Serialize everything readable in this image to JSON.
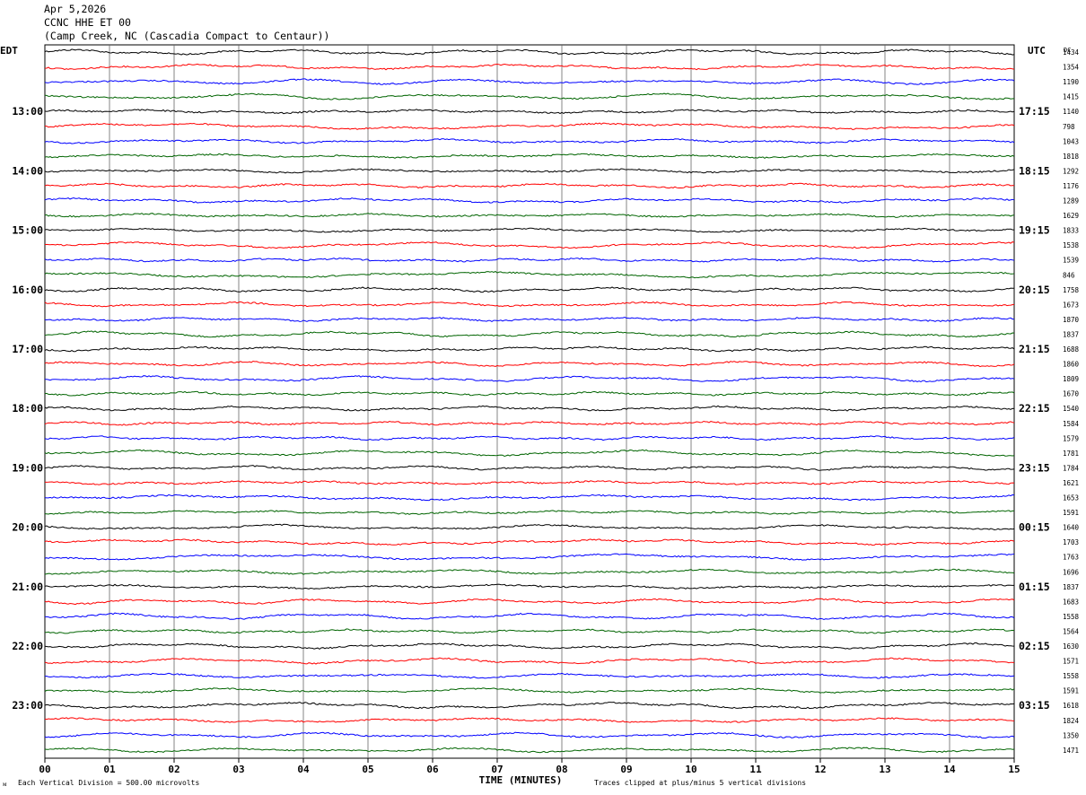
{
  "header": {
    "date": "Apr 5,2026",
    "station": "CCNC HHE ET 00",
    "location": "(Camp Creek, NC (Cascadia Compact to Centaur))"
  },
  "chart_data": {
    "type": "line",
    "title": "Apr 5,2026",
    "xlabel": "TIME (MINUTES)",
    "left_axis_label": "EDT",
    "right_axis_label": "UTC",
    "dc_label": "DC",
    "x_ticks": [
      "00",
      "01",
      "02",
      "03",
      "04",
      "05",
      "06",
      "07",
      "08",
      "09",
      "10",
      "11",
      "12",
      "13",
      "14",
      "15"
    ],
    "xlim": [
      0,
      15
    ],
    "trace_colors": [
      "#000000",
      "#ff0000",
      "#0000ff",
      "#006400"
    ],
    "left_time_labels": [
      {
        "row": 4,
        "label": "13:00"
      },
      {
        "row": 8,
        "label": "14:00"
      },
      {
        "row": 12,
        "label": "15:00"
      },
      {
        "row": 16,
        "label": "16:00"
      },
      {
        "row": 20,
        "label": "17:00"
      },
      {
        "row": 24,
        "label": "18:00"
      },
      {
        "row": 28,
        "label": "19:00"
      },
      {
        "row": 32,
        "label": "20:00"
      },
      {
        "row": 36,
        "label": "21:00"
      },
      {
        "row": 40,
        "label": "22:00"
      },
      {
        "row": 44,
        "label": "23:00"
      }
    ],
    "right_time_labels": [
      {
        "row": 4,
        "label": "17:15"
      },
      {
        "row": 8,
        "label": "18:15"
      },
      {
        "row": 12,
        "label": "19:15"
      },
      {
        "row": 16,
        "label": "20:15"
      },
      {
        "row": 20,
        "label": "21:15"
      },
      {
        "row": 24,
        "label": "22:15"
      },
      {
        "row": 28,
        "label": "23:15"
      },
      {
        "row": 32,
        "label": "00:15"
      },
      {
        "row": 36,
        "label": "01:15"
      },
      {
        "row": 40,
        "label": "02:15"
      },
      {
        "row": 44,
        "label": "03:15"
      }
    ],
    "dc_offsets": [
      "1434",
      "1354",
      "1190",
      "1415",
      "1140",
      "798",
      "1043",
      "1818",
      "1292",
      "1176",
      "1289",
      "1629",
      "1833",
      "1538",
      "1539",
      "846",
      "1758",
      "1673",
      "1870",
      "1837",
      "1688",
      "1860",
      "1809",
      "1670",
      "1540",
      "1584",
      "1579",
      "1781",
      "1784",
      "1621",
      "1653",
      "1591",
      "1640",
      "1703",
      "1763",
      "1696",
      "1837",
      "1683",
      "1558",
      "1564",
      "1630",
      "1571",
      "1558",
      "1591",
      "1618",
      "1824",
      "1350",
      "1471"
    ],
    "footer_left": "Each Vertical Division =  500.00 microvolts",
    "footer_right": "Traces clipped at plus/minus 5 vertical divisions",
    "corner_mark": "ᴍ"
  }
}
